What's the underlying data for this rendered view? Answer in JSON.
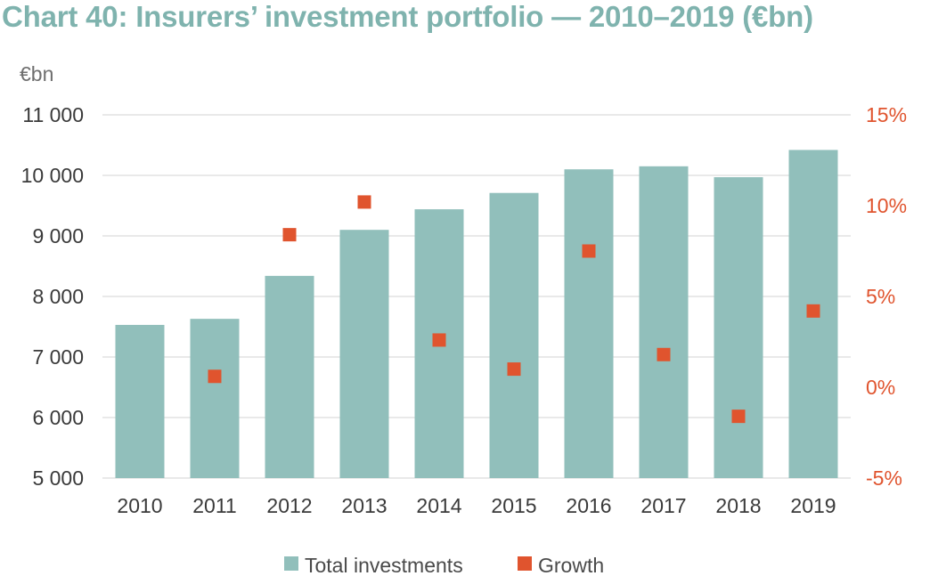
{
  "chart_data": {
    "type": "bar+scatter",
    "title": "Chart 40: Insurers’ investment portfolio — 2010–2019 (€bn)",
    "left_axis_unit": "€bn",
    "categories": [
      "2010",
      "2011",
      "2012",
      "2013",
      "2014",
      "2015",
      "2016",
      "2017",
      "2018",
      "2019"
    ],
    "series": [
      {
        "name": "Total investments",
        "kind": "bar",
        "axis": "left",
        "color": "#91bfbb",
        "values": [
          7530,
          7630,
          8340,
          9100,
          9440,
          9710,
          10100,
          10150,
          9970,
          10420
        ]
      },
      {
        "name": "Growth",
        "kind": "scatter",
        "axis": "right",
        "color": "#e0542e",
        "values": [
          null,
          0.6,
          8.4,
          10.2,
          2.6,
          1.0,
          7.5,
          1.8,
          -1.6,
          4.2
        ]
      }
    ],
    "ylim_left": [
      5000,
      11000
    ],
    "yticks_left": [
      "5 000",
      "6 000",
      "7 000",
      "8 000",
      "9 000",
      "10 000",
      "11 000"
    ],
    "ylim_right": [
      -5,
      15
    ],
    "yticks_right": [
      "-5%",
      "0%",
      "5%",
      "10%",
      "15%"
    ],
    "grid": true,
    "legend_position": "bottom-center"
  }
}
